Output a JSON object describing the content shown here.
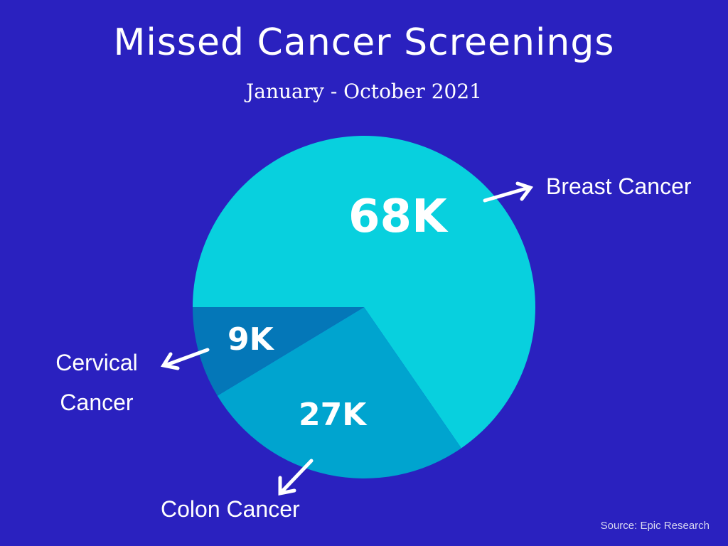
{
  "chart_data": {
    "type": "pie",
    "title": "Missed Cancer Screenings",
    "subtitle": "January - October 2021",
    "slices": [
      {
        "label": "Breast Cancer",
        "value": 68,
        "display": "68K",
        "color": "#08d0de"
      },
      {
        "label": "Colon Cancer",
        "value": 27,
        "display": "27K",
        "color": "#00a4cf"
      },
      {
        "label": "Cervical Cancer",
        "value": 9,
        "display": "9K",
        "color": "#0477b8"
      }
    ],
    "source": "Source: Epic Research"
  },
  "colors": {
    "background": "#2a21bf"
  }
}
